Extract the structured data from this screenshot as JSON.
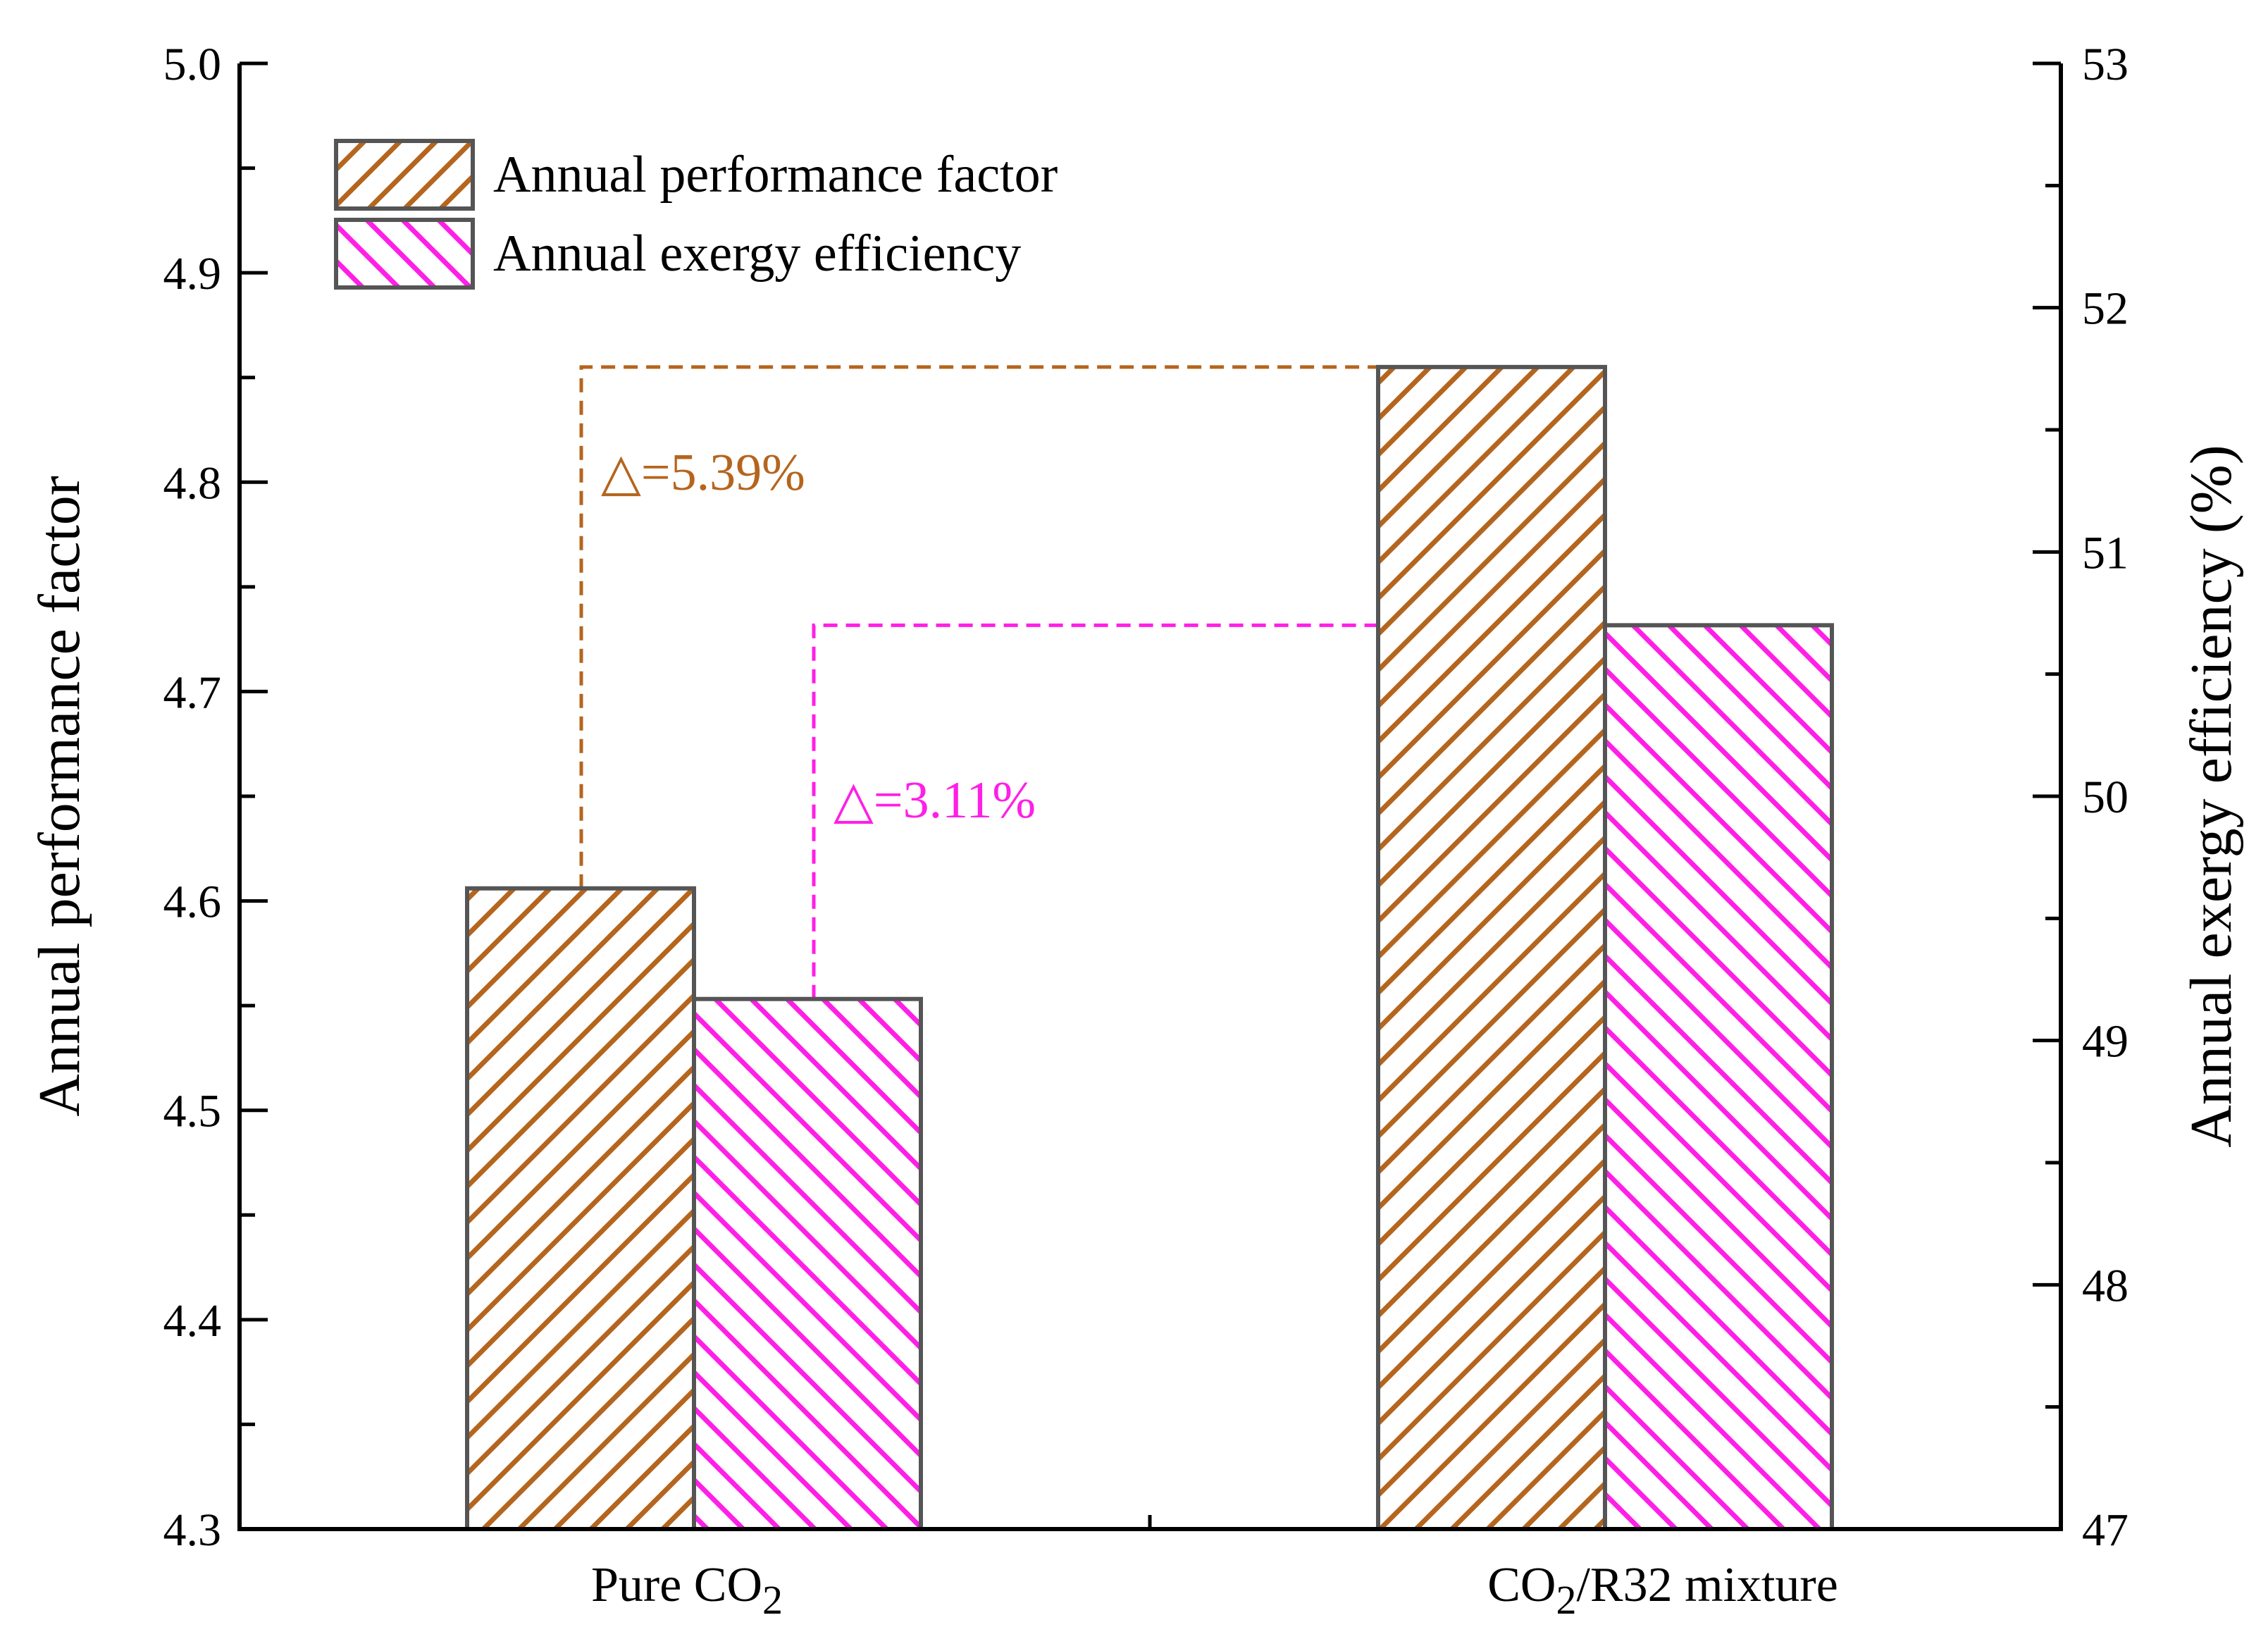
{
  "chart_data": {
    "type": "bar",
    "categories": [
      "Pure CO2",
      "CO2/R32 mixture"
    ],
    "category_labels": [
      {
        "main": "Pure CO",
        "sub": "2",
        "suffix": ""
      },
      {
        "main": "CO",
        "sub": "2",
        "suffix": "/R32 mixture"
      }
    ],
    "series": [
      {
        "name": "Annual performance factor",
        "axis": "left",
        "values": [
          4.606,
          4.855
        ],
        "color": "#b5651d",
        "hatch": "forward"
      },
      {
        "name": "Annual exergy efficiency",
        "axis": "right",
        "values": [
          49.17,
          50.7
        ],
        "color": "#ff1fe6",
        "hatch": "backward"
      }
    ],
    "ylabel": "Annual performance factor",
    "y2label": "Annual exergy efficiency (%)",
    "ylim": [
      4.3,
      5.0
    ],
    "y2lim": [
      47,
      53
    ],
    "yticks": [
      "4.3",
      "4.4",
      "4.5",
      "4.6",
      "4.7",
      "4.8",
      "4.9",
      "5.0"
    ],
    "y2ticks": [
      "47",
      "48",
      "49",
      "50",
      "51",
      "52",
      "53"
    ],
    "legend_position": "top-left",
    "annotations": [
      {
        "text": "△=5.39%",
        "series": 0,
        "color": "#b5651d"
      },
      {
        "text": "△=3.11%",
        "series": 1,
        "color": "#ff1fe6"
      }
    ]
  }
}
